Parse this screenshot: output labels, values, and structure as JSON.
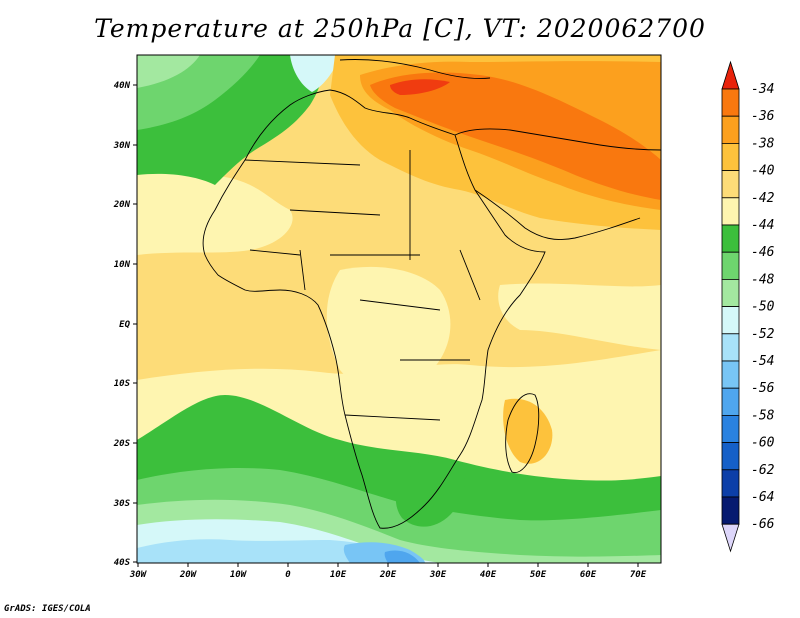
{
  "title": "Temperature at 250hPa [C], VT: 2020062700",
  "footer": "GrADS: IGES/COLA",
  "map": {
    "lat_labels": [
      "40N",
      "30N",
      "20N",
      "10N",
      "EQ",
      "10S",
      "20S",
      "30S",
      "40S"
    ],
    "lon_labels": [
      "30W",
      "20W",
      "10W",
      "0",
      "10E",
      "20E",
      "30E",
      "40E",
      "50E",
      "60E",
      "70E"
    ]
  },
  "colorbar": {
    "labels": [
      "-34",
      "-36",
      "-38",
      "-40",
      "-42",
      "-44",
      "-46",
      "-48",
      "-50",
      "-52",
      "-54",
      "-56",
      "-58",
      "-60",
      "-62",
      "-64",
      "-66"
    ],
    "colors": [
      "#f03c10",
      "#f9780f",
      "#fca01e",
      "#fdc23c",
      "#fddc78",
      "#fef5b0",
      "#3cbf3c",
      "#6ed56e",
      "#a3e8a0",
      "#d5f8f9",
      "#a8e2f9",
      "#78c5f5",
      "#4fa6ee",
      "#2a82e0",
      "#1560c8",
      "#0c3fa8",
      "#061a70"
    ],
    "top_arrow_color": "#e8220b",
    "bottom_arrow_color": "#ddd6fa"
  }
}
